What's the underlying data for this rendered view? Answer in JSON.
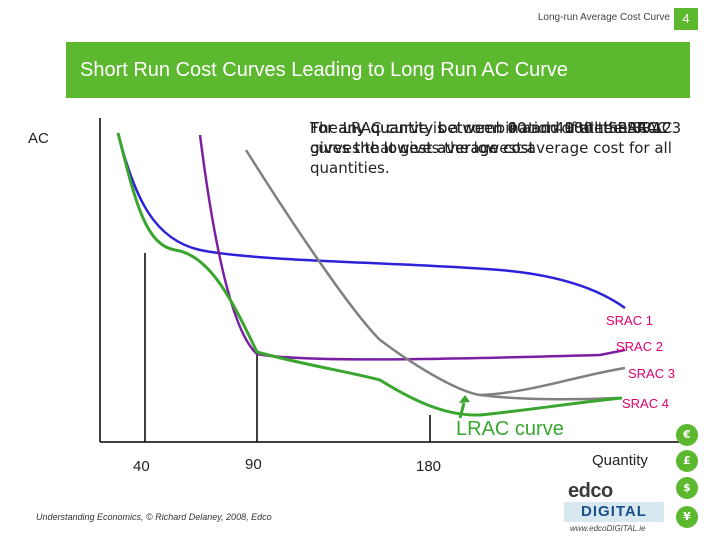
{
  "header": {
    "section_title": "Long-run Average Cost Curve",
    "slide_number": "4"
  },
  "title": "Short Run Cost Curves Leading to Long Run AC Curve",
  "overlay_layers": [
    "For any quantity between 0 and 40 the SRAC 1 gives the lowest average cost",
    "For any quantity between 40 and 90 the SRAC 2 gives the lowest average cost",
    "For any quantity between 90 and 180 the SRAC 3 gives the lowest average cost",
    "The LRAC curve is a combination of all the SRAC curves that gives the lowest average cost for all quantities."
  ],
  "chart_data": {
    "type": "line",
    "ylabel": "AC",
    "xlabel": "Quantity",
    "x_markers": [
      40,
      90,
      180
    ],
    "series": [
      {
        "name": "SRAC 1",
        "color": "#2b22d9"
      },
      {
        "name": "SRAC 2",
        "color": "#7b1fa2"
      },
      {
        "name": "SRAC 3",
        "color": "#808080"
      },
      {
        "name": "SRAC 4",
        "color": "#808080"
      },
      {
        "name": "LRAC curve",
        "color": "#3aa630"
      }
    ],
    "annotations": [
      "LRAC curve"
    ]
  },
  "colors": {
    "accent": "#5cb82e",
    "label_pink": "#e0006c",
    "srac1": "#2b22d9",
    "srac2": "#7b1fa2",
    "srac34": "#808080",
    "lrac": "#3aa630"
  },
  "currency_icons": [
    "€",
    "£",
    "$",
    "¥"
  ],
  "logo": {
    "top": "edco",
    "bottom": "DIGITAL",
    "url": "www.edcoDIGITAL.ie"
  },
  "footer": "Understanding Economics, © Richard Delaney, 2008, Edco"
}
